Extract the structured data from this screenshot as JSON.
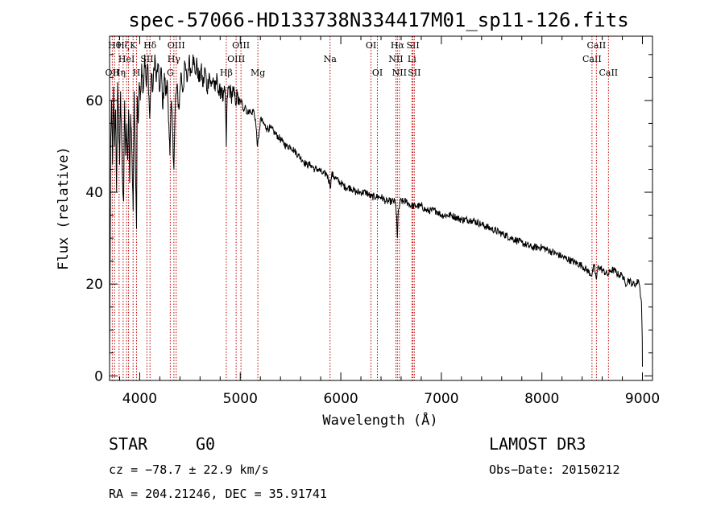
{
  "chart_data": {
    "type": "line",
    "title": "spec-57066-HD133738N334417M01_sp11-126.fits",
    "xlabel": "Wavelength (Å)",
    "ylabel": "Flux (relative)",
    "xlim": [
      3700,
      9100
    ],
    "ylim": [
      -1,
      74
    ],
    "xticks": [
      4000,
      5000,
      6000,
      7000,
      8000,
      9000
    ],
    "yticks": [
      0,
      20,
      40,
      60
    ],
    "x_minor_step": 200,
    "y_minor_step": 5,
    "series": [
      {
        "name": "spectrum",
        "points": [
          [
            3700,
            2
          ],
          [
            3705,
            23
          ],
          [
            3712,
            52
          ],
          [
            3720,
            60
          ],
          [
            3730,
            46
          ],
          [
            3740,
            63
          ],
          [
            3750,
            50
          ],
          [
            3760,
            58
          ],
          [
            3770,
            40
          ],
          [
            3780,
            64
          ],
          [
            3790,
            56
          ],
          [
            3800,
            46
          ],
          [
            3810,
            62
          ],
          [
            3820,
            52
          ],
          [
            3830,
            42
          ],
          [
            3840,
            38
          ],
          [
            3850,
            60
          ],
          [
            3860,
            48
          ],
          [
            3870,
            55
          ],
          [
            3880,
            47
          ],
          [
            3890,
            58
          ],
          [
            3900,
            42
          ],
          [
            3910,
            57
          ],
          [
            3920,
            50
          ],
          [
            3935,
            36
          ],
          [
            3945,
            62
          ],
          [
            3955,
            50
          ],
          [
            3968,
            32
          ],
          [
            3975,
            61
          ],
          [
            3985,
            55
          ],
          [
            3995,
            64
          ],
          [
            4005,
            60
          ],
          [
            4020,
            68
          ],
          [
            4035,
            62
          ],
          [
            4050,
            70
          ],
          [
            4065,
            63
          ],
          [
            4080,
            68
          ],
          [
            4100,
            56
          ],
          [
            4115,
            66
          ],
          [
            4130,
            62
          ],
          [
            4150,
            70
          ],
          [
            4165,
            64
          ],
          [
            4180,
            68
          ],
          [
            4200,
            62
          ],
          [
            4215,
            67
          ],
          [
            4230,
            58
          ],
          [
            4245,
            66
          ],
          [
            4260,
            61
          ],
          [
            4275,
            64
          ],
          [
            4290,
            55
          ],
          [
            4300,
            48
          ],
          [
            4315,
            60
          ],
          [
            4330,
            52
          ],
          [
            4340,
            45
          ],
          [
            4355,
            60
          ],
          [
            4370,
            63
          ],
          [
            4390,
            58
          ],
          [
            4410,
            66
          ],
          [
            4430,
            62
          ],
          [
            4450,
            68
          ],
          [
            4470,
            64
          ],
          [
            4490,
            69
          ],
          [
            4510,
            66
          ],
          [
            4530,
            70
          ],
          [
            4550,
            66
          ],
          [
            4570,
            68
          ],
          [
            4590,
            64
          ],
          [
            4610,
            67
          ],
          [
            4630,
            63
          ],
          [
            4650,
            67
          ],
          [
            4670,
            62
          ],
          [
            4690,
            66
          ],
          [
            4710,
            63
          ],
          [
            4730,
            65
          ],
          [
            4750,
            62
          ],
          [
            4770,
            65
          ],
          [
            4790,
            61
          ],
          [
            4810,
            63
          ],
          [
            4830,
            60
          ],
          [
            4850,
            62
          ],
          [
            4861,
            50
          ],
          [
            4870,
            61
          ],
          [
            4890,
            63
          ],
          [
            4910,
            61
          ],
          [
            4930,
            62
          ],
          [
            4950,
            60
          ],
          [
            4970,
            61
          ],
          [
            4990,
            59
          ],
          [
            5010,
            60
          ],
          [
            5030,
            58
          ],
          [
            5050,
            59
          ],
          [
            5070,
            57
          ],
          [
            5090,
            58
          ],
          [
            5110,
            57
          ],
          [
            5130,
            58
          ],
          [
            5150,
            56
          ],
          [
            5172,
            50
          ],
          [
            5185,
            52
          ],
          [
            5200,
            56
          ],
          [
            5230,
            55
          ],
          [
            5260,
            54
          ],
          [
            5300,
            54
          ],
          [
            5340,
            53
          ],
          [
            5380,
            52
          ],
          [
            5420,
            51
          ],
          [
            5460,
            50
          ],
          [
            5500,
            50
          ],
          [
            5540,
            49
          ],
          [
            5580,
            48
          ],
          [
            5620,
            47
          ],
          [
            5660,
            46
          ],
          [
            5700,
            46
          ],
          [
            5740,
            45
          ],
          [
            5780,
            45
          ],
          [
            5820,
            44
          ],
          [
            5860,
            44
          ],
          [
            5890,
            42
          ],
          [
            5896,
            41
          ],
          [
            5910,
            44
          ],
          [
            5950,
            43
          ],
          [
            6000,
            42
          ],
          [
            6050,
            41
          ],
          [
            6100,
            41
          ],
          [
            6150,
            40
          ],
          [
            6200,
            40
          ],
          [
            6250,
            40
          ],
          [
            6300,
            39
          ],
          [
            6350,
            39
          ],
          [
            6400,
            39
          ],
          [
            6450,
            38
          ],
          [
            6500,
            38
          ],
          [
            6540,
            38
          ],
          [
            6555,
            35
          ],
          [
            6563,
            30
          ],
          [
            6570,
            35
          ],
          [
            6590,
            38
          ],
          [
            6650,
            38
          ],
          [
            6700,
            37
          ],
          [
            6750,
            37
          ],
          [
            6800,
            37
          ],
          [
            6850,
            36
          ],
          [
            6900,
            36
          ],
          [
            6950,
            36
          ],
          [
            7000,
            35
          ],
          [
            7100,
            35
          ],
          [
            7200,
            34
          ],
          [
            7300,
            34
          ],
          [
            7400,
            33
          ],
          [
            7500,
            32
          ],
          [
            7600,
            31
          ],
          [
            7700,
            30
          ],
          [
            7800,
            29
          ],
          [
            7900,
            28
          ],
          [
            8000,
            28
          ],
          [
            8100,
            27
          ],
          [
            8200,
            26
          ],
          [
            8300,
            25
          ],
          [
            8400,
            24
          ],
          [
            8498,
            22
          ],
          [
            8520,
            24
          ],
          [
            8542,
            21
          ],
          [
            8560,
            24
          ],
          [
            8600,
            23
          ],
          [
            8662,
            22
          ],
          [
            8680,
            23
          ],
          [
            8720,
            23
          ],
          [
            8760,
            22
          ],
          [
            8800,
            22
          ],
          [
            8830,
            20
          ],
          [
            8860,
            21
          ],
          [
            8900,
            20
          ],
          [
            8940,
            20
          ],
          [
            8960,
            21
          ],
          [
            8975,
            19
          ],
          [
            8990,
            16
          ],
          [
            8998,
            8
          ],
          [
            9000,
            2
          ]
        ]
      }
    ],
    "lines": [
      {
        "wl": 3727,
        "labels": [
          "OII"
        ],
        "rows": [
          2
        ]
      },
      {
        "wl": 3750,
        "labels": [
          "Hθ"
        ],
        "rows": [
          0
        ]
      },
      {
        "wl": 3795,
        "labels": [
          "Hη"
        ],
        "rows": [
          2
        ]
      },
      {
        "wl": 3835,
        "labels": [
          "Hζ"
        ],
        "rows": [
          0
        ]
      },
      {
        "wl": 3869,
        "labels": [
          "HeI"
        ],
        "rows": [
          1
        ]
      },
      {
        "wl": 3889,
        "labels": [],
        "rows": []
      },
      {
        "wl": 3934,
        "labels": [
          "K"
        ],
        "rows": [
          0
        ]
      },
      {
        "wl": 3968,
        "labels": [
          "H"
        ],
        "rows": [
          2
        ]
      },
      {
        "wl": 4072,
        "labels": [
          "SII"
        ],
        "rows": [
          1
        ]
      },
      {
        "wl": 4102,
        "labels": [
          "Hδ"
        ],
        "rows": [
          0
        ]
      },
      {
        "wl": 4304,
        "labels": [
          "G"
        ],
        "rows": [
          2
        ]
      },
      {
        "wl": 4340,
        "labels": [
          "Hγ"
        ],
        "rows": [
          1
        ]
      },
      {
        "wl": 4363,
        "labels": [
          "OIII"
        ],
        "rows": [
          0
        ]
      },
      {
        "wl": 4861,
        "labels": [
          "Hβ"
        ],
        "rows": [
          2
        ]
      },
      {
        "wl": 4959,
        "labels": [
          "OIII"
        ],
        "rows": [
          1
        ]
      },
      {
        "wl": 5007,
        "labels": [
          "OIII"
        ],
        "rows": [
          0
        ]
      },
      {
        "wl": 5175,
        "labels": [
          "Mg"
        ],
        "rows": [
          2
        ]
      },
      {
        "wl": 5893,
        "labels": [
          "Na"
        ],
        "rows": [
          1
        ]
      },
      {
        "wl": 6300,
        "labels": [
          "OI"
        ],
        "rows": [
          0
        ]
      },
      {
        "wl": 6364,
        "labels": [
          "OI"
        ],
        "rows": [
          2
        ]
      },
      {
        "wl": 6548,
        "labels": [
          "NII"
        ],
        "rows": [
          1
        ]
      },
      {
        "wl": 6563,
        "labels": [
          "Hα"
        ],
        "rows": [
          0
        ]
      },
      {
        "wl": 6583,
        "labels": [
          "NII"
        ],
        "rows": [
          2
        ]
      },
      {
        "wl": 6707,
        "labels": [
          "Li"
        ],
        "rows": [
          1
        ]
      },
      {
        "wl": 6717,
        "labels": [
          "SII"
        ],
        "rows": [
          0
        ]
      },
      {
        "wl": 6731,
        "labels": [
          "SII"
        ],
        "rows": [
          2
        ]
      },
      {
        "wl": 8498,
        "labels": [
          "CaII"
        ],
        "rows": [
          1
        ]
      },
      {
        "wl": 8542,
        "labels": [
          "CaII"
        ],
        "rows": [
          0
        ]
      },
      {
        "wl": 8662,
        "labels": [
          "CaII"
        ],
        "rows": [
          2
        ]
      }
    ],
    "line_color": "#c00000"
  },
  "info": {
    "class_label": "STAR",
    "subclass": "G0",
    "survey": "LAMOST DR3",
    "cz": "cz = −78.7 ± 22.9 km/s",
    "obs_date": "Obs−Date: 20150212",
    "coords": "RA = 204.21246, DEC =  35.91741"
  }
}
